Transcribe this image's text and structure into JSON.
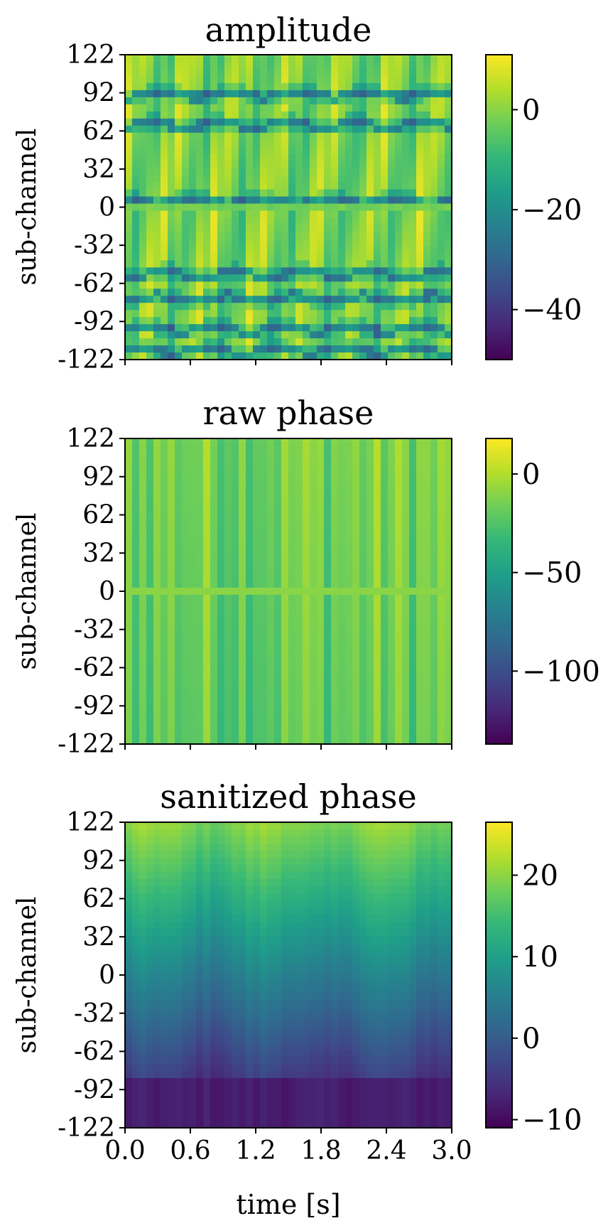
{
  "figure": {
    "xlabel": "time [s]",
    "ylabel": "sub-channel",
    "xticks": [
      "0.0",
      "0.6",
      "1.2",
      "1.8",
      "2.4",
      "3.0"
    ],
    "yticks": [
      "122",
      "92",
      "62",
      "32",
      "0",
      "-32",
      "-62",
      "-92",
      "-122"
    ]
  },
  "chart_data": [
    {
      "type": "heatmap",
      "title": "amplitude",
      "xlabel": "",
      "ylabel": "sub-channel",
      "xlim": [
        0.0,
        3.0
      ],
      "ylim": [
        -122,
        122
      ],
      "colormap": "viridis",
      "colorbar": {
        "range": [
          -50,
          11
        ],
        "ticks": [
          0,
          -20,
          -40
        ],
        "tick_labels": [
          "0",
          "−20",
          "−40"
        ]
      },
      "description_values": "mostly 0 to 10 (green-yellow) with dark horizontal streaks near -20 to -30 around sub-channels 52, 10, -50, -80, -105"
    },
    {
      "type": "heatmap",
      "title": "raw phase",
      "xlabel": "",
      "ylabel": "sub-channel",
      "xlim": [
        0.0,
        3.0
      ],
      "ylim": [
        -122,
        122
      ],
      "colormap": "viridis",
      "colorbar": {
        "range": [
          -137,
          18
        ],
        "ticks": [
          0,
          -50,
          -100
        ],
        "tick_labels": [
          "0",
          "−50",
          "−100"
        ]
      },
      "description_values": "near 0 to 15 with vertical stripe structure across time"
    },
    {
      "type": "heatmap",
      "title": "sanitized phase",
      "xlabel": "time [s]",
      "ylabel": "sub-channel",
      "xlim": [
        0.0,
        3.0
      ],
      "ylim": [
        -122,
        122
      ],
      "colormap": "viridis",
      "colorbar": {
        "range": [
          -11,
          26.5
        ],
        "ticks": [
          20,
          10,
          0,
          -10
        ],
        "tick_labels": [
          "20",
          "10",
          "0",
          "−10"
        ]
      },
      "description_values": "gradient from about 20 at top sub-channels to about -8 at bottom sub-channels"
    }
  ]
}
